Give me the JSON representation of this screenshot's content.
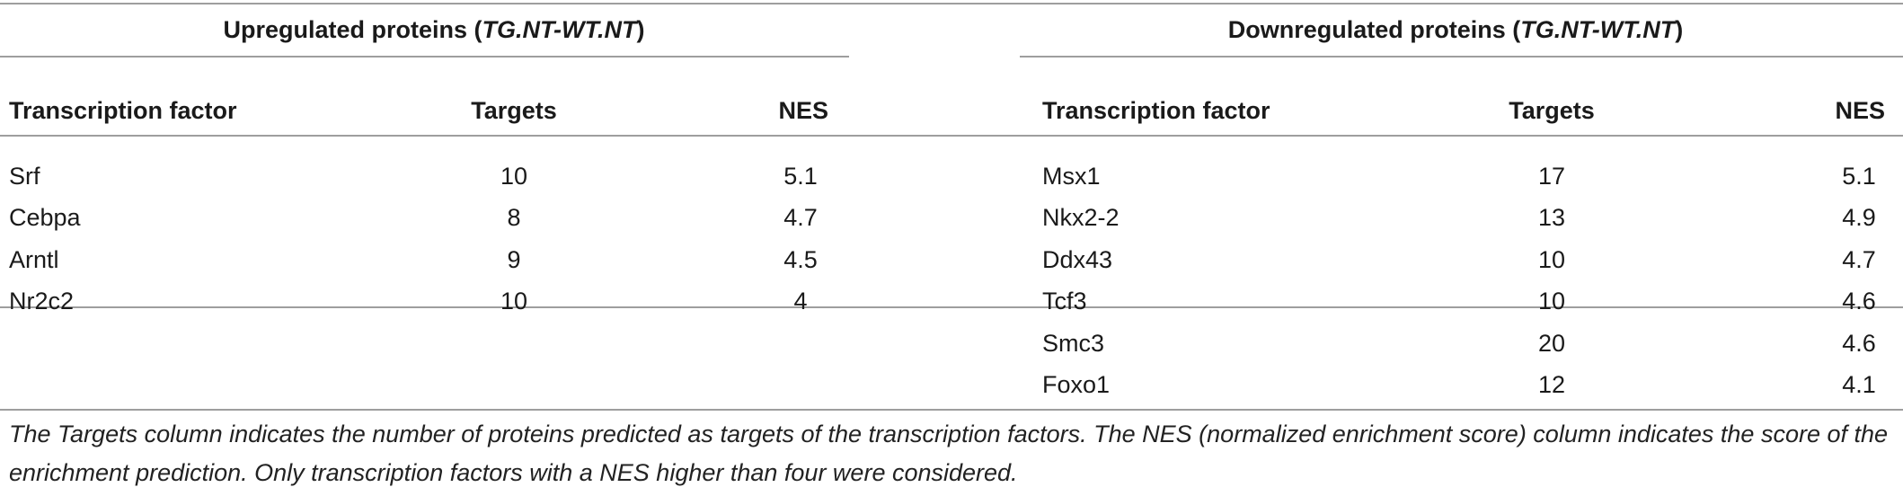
{
  "left": {
    "group_prefix": "Upregulated proteins (",
    "group_contrast": "TG.NT-WT.NT",
    "group_suffix": ")",
    "columns": [
      "Transcription factor",
      "Targets",
      "NES"
    ],
    "rows": [
      {
        "tf": "Srf",
        "targets": "10",
        "nes": "5.1"
      },
      {
        "tf": "Cebpa",
        "targets": "8",
        "nes": "4.7"
      },
      {
        "tf": "Arntl",
        "targets": "9",
        "nes": "4.5"
      },
      {
        "tf": "Nr2c2",
        "targets": "10",
        "nes": "4"
      }
    ]
  },
  "right": {
    "group_prefix": "Downregulated proteins (",
    "group_contrast": "TG.NT-WT.NT",
    "group_suffix": ")",
    "columns": [
      "Transcription factor",
      "Targets",
      "NES"
    ],
    "rows": [
      {
        "tf": "Msx1",
        "targets": "17",
        "nes": "5.1"
      },
      {
        "tf": "Nkx2-2",
        "targets": "13",
        "nes": "4.9"
      },
      {
        "tf": "Ddx43",
        "targets": "10",
        "nes": "4.7"
      },
      {
        "tf": "Tcf3",
        "targets": "10",
        "nes": "4.6"
      },
      {
        "tf": "Smc3",
        "targets": "20",
        "nes": "4.6"
      },
      {
        "tf": "Foxo1",
        "targets": "12",
        "nes": "4.1"
      }
    ]
  },
  "footnote": "The Targets column indicates the number of proteins predicted as targets of the transcription factors. The NES (normalized enrichment score) column indicates the score of the enrichment prediction. Only transcription factors with a NES higher than four were considered."
}
